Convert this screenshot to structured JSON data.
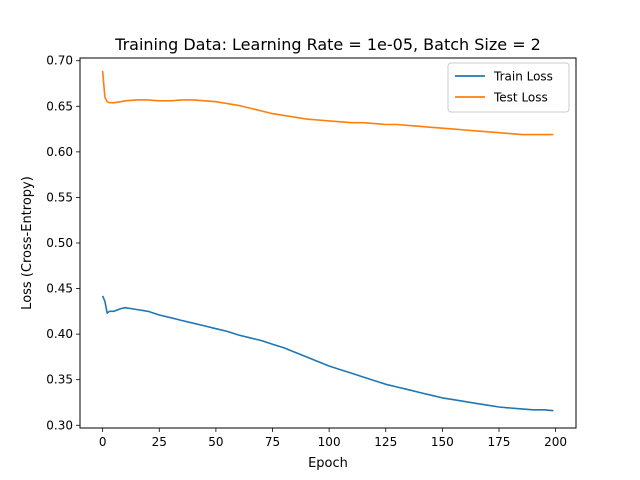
{
  "chart_data": {
    "type": "line",
    "title": "Training Data: Learning Rate = 1e-05, Batch Size = 2",
    "xlabel": "Epoch",
    "ylabel": "Loss (Cross-Entropy)",
    "xlim": [
      -10,
      209
    ],
    "ylim": [
      0.297,
      0.703
    ],
    "xticks": [
      0,
      25,
      50,
      75,
      100,
      125,
      150,
      175,
      200
    ],
    "yticks": [
      0.3,
      0.35,
      0.4,
      0.45,
      0.5,
      0.55,
      0.6,
      0.65,
      0.7
    ],
    "ytick_labels": [
      "0.30",
      "0.35",
      "0.40",
      "0.45",
      "0.50",
      "0.55",
      "0.60",
      "0.65",
      "0.70"
    ],
    "grid": false,
    "legend_position": "top-right",
    "series": [
      {
        "name": "Train Loss",
        "color": "#1f77b4",
        "x": [
          0,
          1,
          2,
          3,
          5,
          8,
          10,
          15,
          20,
          25,
          30,
          35,
          40,
          45,
          50,
          55,
          60,
          65,
          70,
          75,
          80,
          85,
          90,
          95,
          100,
          105,
          110,
          115,
          120,
          125,
          130,
          135,
          140,
          145,
          150,
          155,
          160,
          165,
          170,
          175,
          180,
          185,
          190,
          195,
          199
        ],
        "y": [
          0.442,
          0.436,
          0.423,
          0.425,
          0.425,
          0.428,
          0.429,
          0.427,
          0.425,
          0.421,
          0.418,
          0.415,
          0.412,
          0.409,
          0.406,
          0.403,
          0.399,
          0.396,
          0.393,
          0.389,
          0.385,
          0.38,
          0.375,
          0.37,
          0.365,
          0.361,
          0.357,
          0.353,
          0.349,
          0.345,
          0.342,
          0.339,
          0.336,
          0.333,
          0.33,
          0.328,
          0.326,
          0.324,
          0.322,
          0.32,
          0.319,
          0.318,
          0.317,
          0.317,
          0.316
        ]
      },
      {
        "name": "Test Loss",
        "color": "#ff7f0e",
        "x": [
          0,
          1,
          2,
          3,
          5,
          8,
          10,
          15,
          20,
          25,
          30,
          35,
          40,
          45,
          50,
          55,
          60,
          65,
          70,
          75,
          80,
          85,
          90,
          95,
          100,
          105,
          110,
          115,
          120,
          125,
          130,
          135,
          140,
          145,
          150,
          155,
          160,
          165,
          170,
          175,
          180,
          185,
          190,
          195,
          199
        ],
        "y": [
          0.689,
          0.66,
          0.655,
          0.654,
          0.654,
          0.655,
          0.656,
          0.657,
          0.657,
          0.656,
          0.656,
          0.657,
          0.657,
          0.656,
          0.655,
          0.653,
          0.651,
          0.648,
          0.645,
          0.642,
          0.64,
          0.638,
          0.636,
          0.635,
          0.634,
          0.633,
          0.632,
          0.632,
          0.631,
          0.63,
          0.63,
          0.629,
          0.628,
          0.627,
          0.626,
          0.625,
          0.624,
          0.623,
          0.622,
          0.621,
          0.62,
          0.619,
          0.619,
          0.619,
          0.619
        ]
      }
    ]
  }
}
